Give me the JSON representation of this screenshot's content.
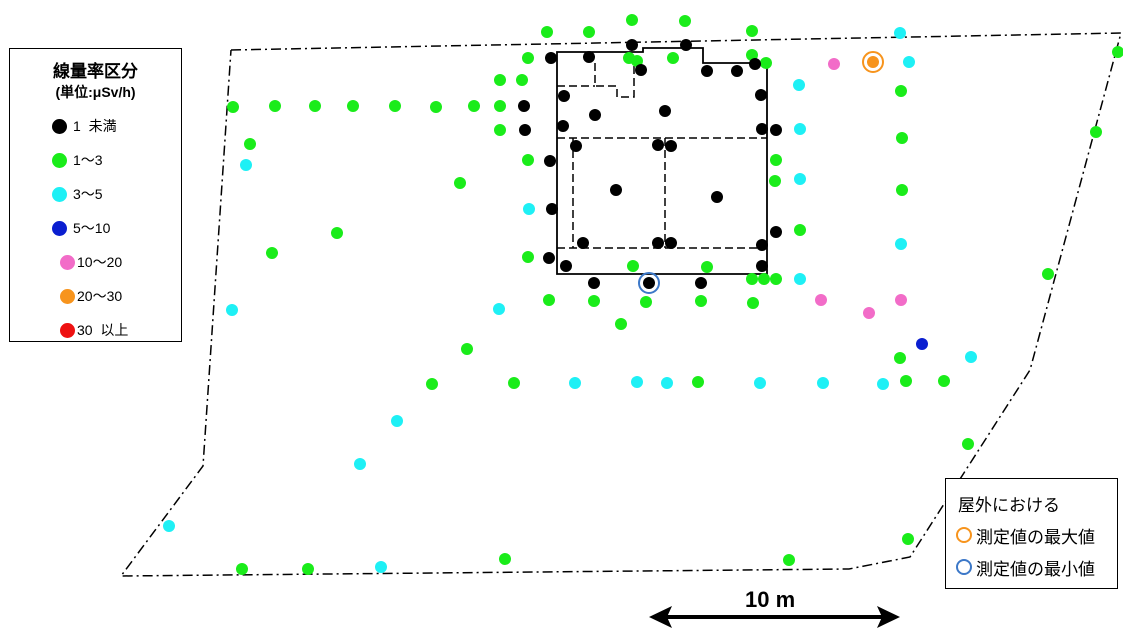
{
  "legend": {
    "title": "線量率区分",
    "unit": "(単位:μSv/h)",
    "items": [
      {
        "label": "1  未満",
        "color": "#000000"
      },
      {
        "label": "1〜3",
        "color": "#1aec1a"
      },
      {
        "label": "3〜5",
        "color": "#1ef0f5"
      },
      {
        "label": "5〜10",
        "color": "#0a1ed0"
      },
      {
        "label": "10〜20",
        "color": "#f26cc8"
      },
      {
        "label": "20〜30",
        "color": "#f7941d"
      },
      {
        "label": "30  以上",
        "color": "#ee1111"
      }
    ]
  },
  "extremes_legend": {
    "title": "屋外における",
    "max_label": "測定値の最大値",
    "max_color": "#f7941d",
    "min_label": "測定値の最小値",
    "min_color": "#3c78c8"
  },
  "scale_bar": {
    "label": "10 m"
  },
  "points": [
    [
      "g",
      547,
      32
    ],
    [
      "g",
      589,
      32
    ],
    [
      "g",
      632,
      20
    ],
    [
      "g",
      685,
      21
    ],
    [
      "g",
      752,
      31
    ],
    [
      "c",
      900,
      33
    ],
    [
      "k",
      551,
      58
    ],
    [
      "k",
      589,
      57
    ],
    [
      "k",
      632,
      45
    ],
    [
      "k",
      686,
      45
    ],
    [
      "g",
      528,
      58
    ],
    [
      "g",
      629,
      58
    ],
    [
      "g",
      637,
      61
    ],
    [
      "g",
      673,
      58
    ],
    [
      "g",
      752,
      55
    ],
    [
      "g",
      766,
      63
    ],
    [
      "k",
      641,
      70
    ],
    [
      "k",
      707,
      71
    ],
    [
      "k",
      737,
      71
    ],
    [
      "k",
      755,
      64
    ],
    [
      "p",
      834,
      64
    ],
    [
      "o",
      873,
      62
    ],
    [
      "c",
      909,
      62
    ],
    [
      "g",
      1118,
      52
    ],
    [
      "g",
      500,
      80
    ],
    [
      "g",
      522,
      80
    ],
    [
      "c",
      799,
      85
    ],
    [
      "g",
      901,
      91
    ],
    [
      "k",
      564,
      96
    ],
    [
      "k",
      595,
      115
    ],
    [
      "k",
      665,
      111
    ],
    [
      "k",
      761,
      95
    ],
    [
      "g",
      233,
      107
    ],
    [
      "g",
      275,
      106
    ],
    [
      "g",
      315,
      106
    ],
    [
      "g",
      353,
      106
    ],
    [
      "g",
      395,
      106
    ],
    [
      "g",
      436,
      107
    ],
    [
      "g",
      474,
      106
    ],
    [
      "g",
      500,
      106
    ],
    [
      "k",
      524,
      106
    ],
    [
      "g",
      500,
      130
    ],
    [
      "k",
      525,
      130
    ],
    [
      "k",
      563,
      126
    ],
    [
      "k",
      762,
      129
    ],
    [
      "k",
      776,
      130
    ],
    [
      "c",
      800,
      129
    ],
    [
      "g",
      902,
      138
    ],
    [
      "g",
      1096,
      132
    ],
    [
      "g",
      250,
      144
    ],
    [
      "k",
      576,
      146
    ],
    [
      "k",
      658,
      145
    ],
    [
      "k",
      671,
      146
    ],
    [
      "g",
      528,
      160
    ],
    [
      "k",
      550,
      161
    ],
    [
      "g",
      776,
      160
    ],
    [
      "c",
      246,
      165
    ],
    [
      "g",
      460,
      183
    ],
    [
      "k",
      616,
      190
    ],
    [
      "c",
      800,
      179
    ],
    [
      "g",
      775,
      181
    ],
    [
      "g",
      902,
      190
    ],
    [
      "k",
      717,
      197
    ],
    [
      "c",
      529,
      209
    ],
    [
      "k",
      552,
      209
    ],
    [
      "g",
      337,
      233
    ],
    [
      "g",
      800,
      230
    ],
    [
      "k",
      776,
      232
    ],
    [
      "k",
      583,
      243
    ],
    [
      "k",
      658,
      243
    ],
    [
      "k",
      671,
      243
    ],
    [
      "k",
      762,
      245
    ],
    [
      "c",
      901,
      244
    ],
    [
      "g",
      272,
      253
    ],
    [
      "g",
      528,
      257
    ],
    [
      "k",
      549,
      258
    ],
    [
      "k",
      566,
      266
    ],
    [
      "g",
      633,
      266
    ],
    [
      "g",
      707,
      267
    ],
    [
      "k",
      762,
      266
    ],
    [
      "g",
      1048,
      274
    ],
    [
      "k",
      594,
      283
    ],
    [
      "k",
      649,
      283
    ],
    [
      "k",
      701,
      283
    ],
    [
      "g",
      752,
      279
    ],
    [
      "g",
      764,
      279
    ],
    [
      "g",
      776,
      279
    ],
    [
      "c",
      800,
      279
    ],
    [
      "g",
      549,
      300
    ],
    [
      "g",
      594,
      301
    ],
    [
      "g",
      646,
      302
    ],
    [
      "g",
      701,
      301
    ],
    [
      "g",
      753,
      303
    ],
    [
      "p",
      821,
      300
    ],
    [
      "p",
      869,
      313
    ],
    [
      "p",
      901,
      300
    ],
    [
      "c",
      232,
      310
    ],
    [
      "c",
      499,
      309
    ],
    [
      "g",
      621,
      324
    ],
    [
      "b",
      922,
      344
    ],
    [
      "g",
      467,
      349
    ],
    [
      "g",
      900,
      358
    ],
    [
      "c",
      971,
      357
    ],
    [
      "g",
      432,
      384
    ],
    [
      "g",
      514,
      383
    ],
    [
      "c",
      575,
      383
    ],
    [
      "c",
      637,
      382
    ],
    [
      "c",
      667,
      383
    ],
    [
      "g",
      698,
      382
    ],
    [
      "c",
      760,
      383
    ],
    [
      "c",
      823,
      383
    ],
    [
      "c",
      883,
      384
    ],
    [
      "g",
      906,
      381
    ],
    [
      "g",
      944,
      381
    ],
    [
      "c",
      397,
      421
    ],
    [
      "g",
      968,
      444
    ],
    [
      "c",
      360,
      464
    ],
    [
      "c",
      169,
      526
    ],
    [
      "g",
      908,
      539
    ],
    [
      "g",
      505,
      559
    ],
    [
      "g",
      789,
      560
    ],
    [
      "g",
      242,
      569
    ],
    [
      "g",
      308,
      569
    ],
    [
      "c",
      381,
      567
    ]
  ]
}
